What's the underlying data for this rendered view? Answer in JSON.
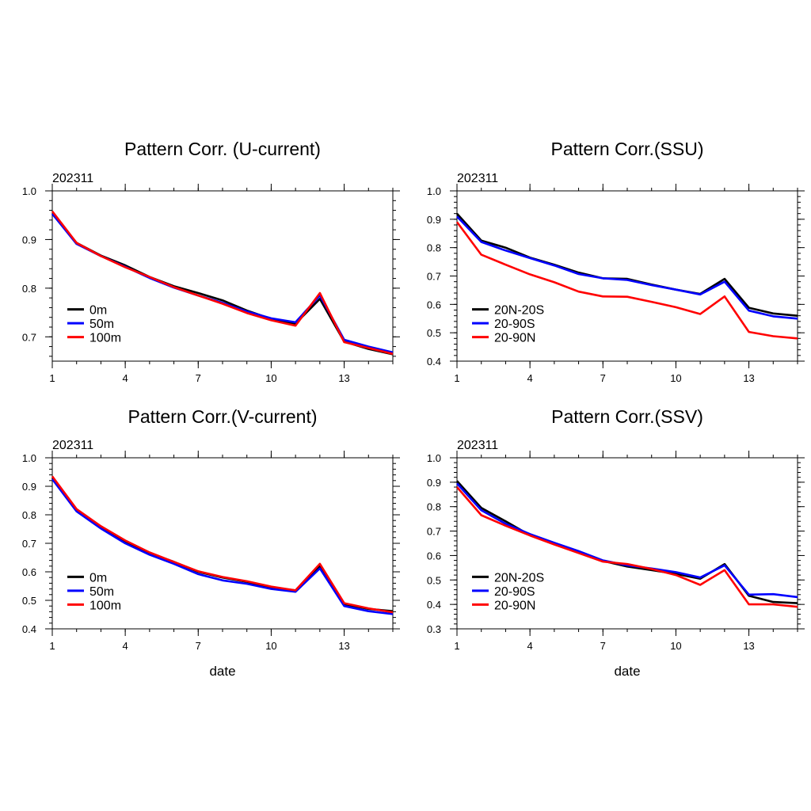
{
  "chart_data": [
    {
      "type": "line",
      "title": "Pattern Corr. (U-current)",
      "subtitle": "202311",
      "xlabel": "",
      "ylabel": "",
      "x": [
        1,
        2,
        3,
        4,
        5,
        6,
        7,
        8,
        9,
        10,
        11,
        12,
        13,
        14,
        15
      ],
      "xticks": [
        1,
        4,
        7,
        10,
        13
      ],
      "xlim": [
        1,
        15
      ],
      "ylim": [
        0.65,
        1.0
      ],
      "yticks": [
        0.7,
        0.8,
        0.9,
        1.0
      ],
      "ytick_labels": [
        "0.7",
        "0.8",
        "0.9",
        "1.0"
      ],
      "legend_position": "lower-left",
      "series": [
        {
          "name": "0m",
          "color": "#000000",
          "values": [
            0.953,
            0.893,
            0.867,
            0.847,
            0.823,
            0.804,
            0.79,
            0.775,
            0.754,
            0.737,
            0.727,
            0.778,
            0.69,
            0.675,
            0.664
          ]
        },
        {
          "name": "50m",
          "color": "#0000ff",
          "values": [
            0.953,
            0.891,
            0.866,
            0.844,
            0.821,
            0.801,
            0.785,
            0.77,
            0.752,
            0.738,
            0.73,
            0.785,
            0.694,
            0.68,
            0.668
          ]
        },
        {
          "name": "100m",
          "color": "#ff0000",
          "values": [
            0.958,
            0.893,
            0.866,
            0.843,
            0.823,
            0.802,
            0.785,
            0.768,
            0.749,
            0.734,
            0.723,
            0.79,
            0.689,
            0.677,
            0.665
          ]
        }
      ]
    },
    {
      "type": "line",
      "title": "Pattern Corr.(SSU)",
      "subtitle": "202311",
      "xlabel": "",
      "ylabel": "",
      "x": [
        1,
        2,
        3,
        4,
        5,
        6,
        7,
        8,
        9,
        10,
        11,
        12,
        13,
        14,
        15
      ],
      "xticks": [
        1,
        4,
        7,
        10,
        13
      ],
      "xlim": [
        1,
        15
      ],
      "ylim": [
        0.4,
        1.0
      ],
      "yticks": [
        0.4,
        0.5,
        0.6,
        0.7,
        0.8,
        0.9,
        1.0
      ],
      "ytick_labels": [
        "0.4",
        "0.5",
        "0.6",
        "0.7",
        "0.8",
        "0.9",
        "1.0"
      ],
      "legend_position": "lower-left",
      "series": [
        {
          "name": "20N-20S",
          "color": "#000000",
          "values": [
            0.92,
            0.825,
            0.8,
            0.765,
            0.74,
            0.712,
            0.692,
            0.69,
            0.67,
            0.652,
            0.637,
            0.69,
            0.588,
            0.568,
            0.56
          ]
        },
        {
          "name": "20-90S",
          "color": "#0000ff",
          "values": [
            0.91,
            0.82,
            0.79,
            0.763,
            0.737,
            0.707,
            0.692,
            0.686,
            0.668,
            0.652,
            0.635,
            0.68,
            0.578,
            0.558,
            0.55
          ]
        },
        {
          "name": "20-90N",
          "color": "#ff0000",
          "values": [
            0.89,
            0.775,
            0.74,
            0.706,
            0.678,
            0.645,
            0.628,
            0.627,
            0.609,
            0.59,
            0.566,
            0.628,
            0.503,
            0.488,
            0.48
          ]
        }
      ]
    },
    {
      "type": "line",
      "title": "Pattern Corr.(V-current)",
      "subtitle": "202311",
      "xlabel": "date",
      "ylabel": "",
      "x": [
        1,
        2,
        3,
        4,
        5,
        6,
        7,
        8,
        9,
        10,
        11,
        12,
        13,
        14,
        15
      ],
      "xticks": [
        1,
        4,
        7,
        10,
        13
      ],
      "xlim": [
        1,
        15
      ],
      "ylim": [
        0.4,
        1.0
      ],
      "yticks": [
        0.4,
        0.5,
        0.6,
        0.7,
        0.8,
        0.9,
        1.0
      ],
      "ytick_labels": [
        "0.4",
        "0.5",
        "0.6",
        "0.7",
        "0.8",
        "0.9",
        "1.0"
      ],
      "legend_position": "lower-left",
      "series": [
        {
          "name": "0m",
          "color": "#000000",
          "values": [
            0.93,
            0.815,
            0.755,
            0.705,
            0.665,
            0.635,
            0.6,
            0.58,
            0.565,
            0.545,
            0.535,
            0.62,
            0.487,
            0.47,
            0.462
          ]
        },
        {
          "name": "50m",
          "color": "#0000ff",
          "values": [
            0.925,
            0.812,
            0.752,
            0.7,
            0.66,
            0.628,
            0.592,
            0.57,
            0.558,
            0.54,
            0.53,
            0.612,
            0.48,
            0.462,
            0.452
          ]
        },
        {
          "name": "100m",
          "color": "#ff0000",
          "values": [
            0.935,
            0.82,
            0.76,
            0.71,
            0.668,
            0.635,
            0.602,
            0.582,
            0.567,
            0.548,
            0.535,
            0.628,
            0.49,
            0.472,
            0.458
          ]
        }
      ]
    },
    {
      "type": "line",
      "title": "Pattern Corr.(SSV)",
      "subtitle": "202311",
      "xlabel": "date",
      "ylabel": "",
      "x": [
        1,
        2,
        3,
        4,
        5,
        6,
        7,
        8,
        9,
        10,
        11,
        12,
        13,
        14,
        15
      ],
      "xticks": [
        1,
        4,
        7,
        10,
        13
      ],
      "xlim": [
        1,
        15
      ],
      "ylim": [
        0.3,
        1.0
      ],
      "yticks": [
        0.3,
        0.4,
        0.5,
        0.6,
        0.7,
        0.8,
        0.9,
        1.0
      ],
      "ytick_labels": [
        "0.3",
        "0.4",
        "0.5",
        "0.6",
        "0.7",
        "0.8",
        "0.9",
        "1.0"
      ],
      "legend_position": "lower-left",
      "series": [
        {
          "name": "20N-20S",
          "color": "#000000",
          "values": [
            0.905,
            0.795,
            0.74,
            0.683,
            0.65,
            0.615,
            0.578,
            0.555,
            0.54,
            0.525,
            0.505,
            0.565,
            0.435,
            0.41,
            0.405
          ]
        },
        {
          "name": "20-90S",
          "color": "#0000ff",
          "values": [
            0.895,
            0.785,
            0.73,
            0.688,
            0.652,
            0.618,
            0.58,
            0.56,
            0.547,
            0.532,
            0.51,
            0.56,
            0.44,
            0.442,
            0.43
          ]
        },
        {
          "name": "20-90N",
          "color": "#ff0000",
          "values": [
            0.88,
            0.765,
            0.722,
            0.682,
            0.645,
            0.61,
            0.575,
            0.565,
            0.545,
            0.52,
            0.48,
            0.54,
            0.4,
            0.4,
            0.39
          ]
        }
      ]
    }
  ]
}
